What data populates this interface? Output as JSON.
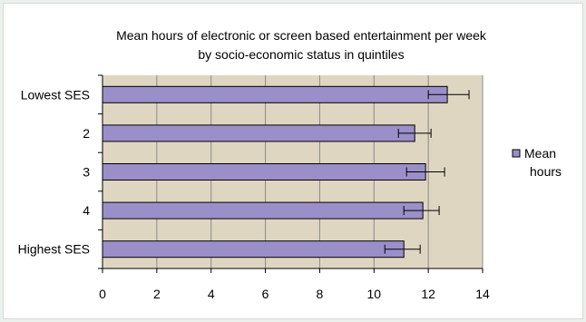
{
  "chart_data": {
    "type": "bar",
    "orientation": "horizontal",
    "title_line1": "Mean hours of electronic or screen based entertainment per week",
    "title_line2": "by socio-economic status in quintiles",
    "categories": [
      "Lowest SES",
      "2",
      "3",
      "4",
      "Highest SES"
    ],
    "series": [
      {
        "name": "Mean hours",
        "values": [
          12.7,
          11.5,
          11.9,
          11.8,
          11.1
        ],
        "error_low": [
          12.0,
          10.9,
          11.2,
          11.1,
          10.4
        ],
        "error_high": [
          13.5,
          12.1,
          12.6,
          12.4,
          11.7
        ]
      }
    ],
    "legend_line1": "Mean",
    "legend_line2": "hours",
    "xlim": [
      0,
      14
    ],
    "x_ticks": [
      0,
      2,
      4,
      6,
      8,
      10,
      12,
      14
    ],
    "x_tick_labels": [
      "0",
      "2",
      "4",
      "6",
      "8",
      "10",
      "12",
      "14"
    ],
    "grid": true,
    "legend_position": "right",
    "colors": {
      "plot_background": "#ded6c1",
      "bar_fill": "#9a8fc9",
      "bar_stroke": "#000000",
      "gridline": "#8a8a8a",
      "page_background": "#ebf0ec"
    }
  }
}
